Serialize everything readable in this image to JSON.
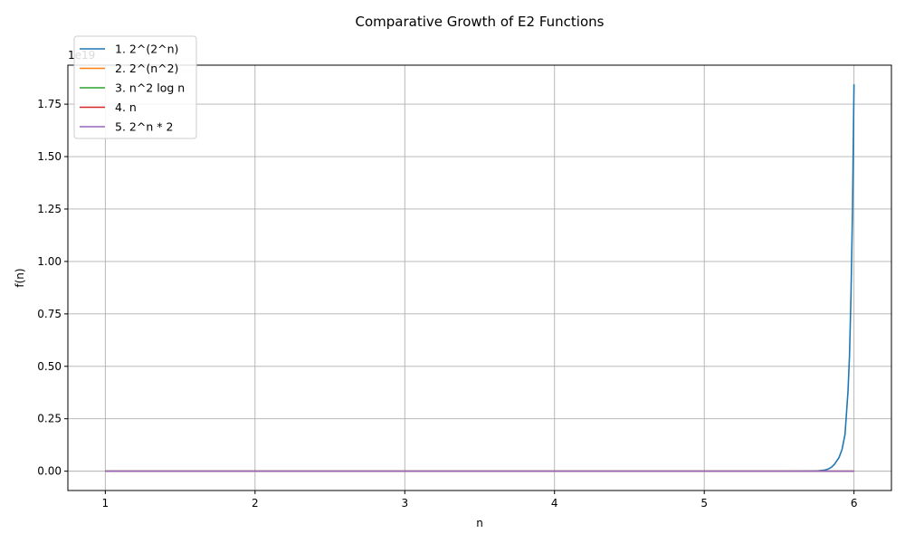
{
  "chart_data": {
    "type": "line",
    "title": "Comparative Growth of E2 Functions",
    "xlabel": "n",
    "ylabel": "f(n)",
    "y_offset_text": "1e19",
    "xlim": [
      0.75,
      6.25
    ],
    "ylim": [
      -0.0922,
      1.936
    ],
    "y_scale_note": "values shown in units of 1e19",
    "grid": true,
    "legend_position": "upper-left",
    "x_ticks": [
      1,
      2,
      3,
      4,
      5,
      6
    ],
    "x_tick_labels": [
      "1",
      "2",
      "3",
      "4",
      "5",
      "6"
    ],
    "y_ticks": [
      0,
      0.25,
      0.5,
      0.75,
      1.0,
      1.25,
      1.5,
      1.75
    ],
    "y_tick_labels": [
      "0.00",
      "0.25",
      "0.50",
      "0.75",
      "1.00",
      "1.25",
      "1.50",
      "1.75"
    ],
    "series": [
      {
        "name": "1. 2^(2^n)",
        "color": "#1f77b4",
        "x": [
          1,
          5.5,
          5.7,
          5.75,
          5.8,
          5.83,
          5.85,
          5.87,
          5.9,
          5.92,
          5.94,
          5.96,
          5.97,
          5.98,
          5.99,
          6.0
        ],
        "y": [
          0,
          0,
          0.0003,
          0.0012,
          0.0045,
          0.011,
          0.019,
          0.033,
          0.065,
          0.103,
          0.175,
          0.38,
          0.55,
          0.84,
          1.24,
          1.845
        ]
      },
      {
        "name": "2. 2^(n^2)",
        "color": "#ff7f0e",
        "x": [
          1,
          6
        ],
        "y": [
          0,
          0
        ]
      },
      {
        "name": "3. n^2 log n",
        "color": "#2ca02c",
        "x": [
          1,
          6
        ],
        "y": [
          0,
          0
        ]
      },
      {
        "name": "4. n",
        "color": "#d62728",
        "x": [
          1,
          6
        ],
        "y": [
          0,
          0
        ]
      },
      {
        "name": "5. 2^n * 2",
        "color": "#9467bd",
        "x": [
          1,
          6
        ],
        "y": [
          0,
          0
        ]
      }
    ]
  }
}
